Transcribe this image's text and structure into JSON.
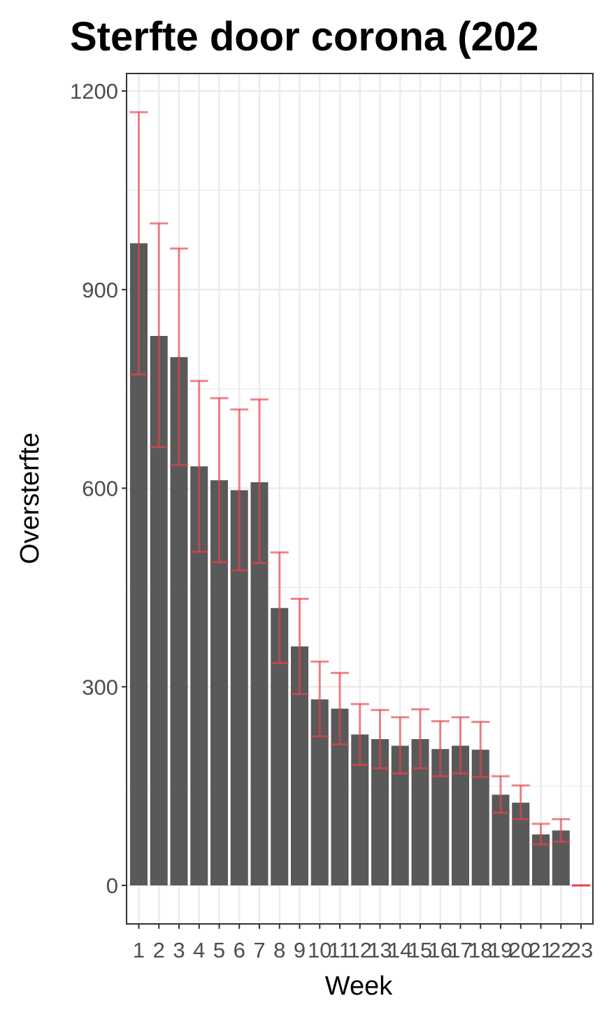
{
  "chart_data": {
    "type": "bar",
    "title": "Sterfte door corona (202",
    "xlabel": "Week",
    "ylabel": "Oversterfte",
    "categories": [
      "1",
      "2",
      "3",
      "4",
      "5",
      "6",
      "7",
      "8",
      "9",
      "10",
      "11",
      "12",
      "13",
      "14",
      "15",
      "16",
      "17",
      "18",
      "19",
      "20",
      "21",
      "22",
      "23"
    ],
    "values": [
      970,
      830,
      798,
      633,
      612,
      597,
      609,
      419,
      361,
      281,
      267,
      228,
      221,
      211,
      221,
      206,
      211,
      205,
      137,
      125,
      77,
      83,
      0
    ],
    "error_low": [
      772,
      662,
      635,
      504,
      488,
      476,
      487,
      336,
      289,
      225,
      213,
      182,
      177,
      169,
      177,
      165,
      169,
      164,
      110,
      100,
      62,
      66,
      0
    ],
    "error_high": [
      1168,
      1000,
      962,
      762,
      736,
      719,
      734,
      503,
      433,
      338,
      321,
      274,
      265,
      254,
      266,
      248,
      254,
      247,
      165,
      151,
      93,
      100,
      0
    ],
    "ylim": [
      -60,
      1225
    ],
    "yticks": [
      0,
      300,
      600,
      900,
      1200
    ],
    "grid": true,
    "legend": "none",
    "colors": {
      "bar": "#595959",
      "error_bar": "#e8434a",
      "grid": "#ebebeb",
      "panel_border": "#333333"
    }
  }
}
